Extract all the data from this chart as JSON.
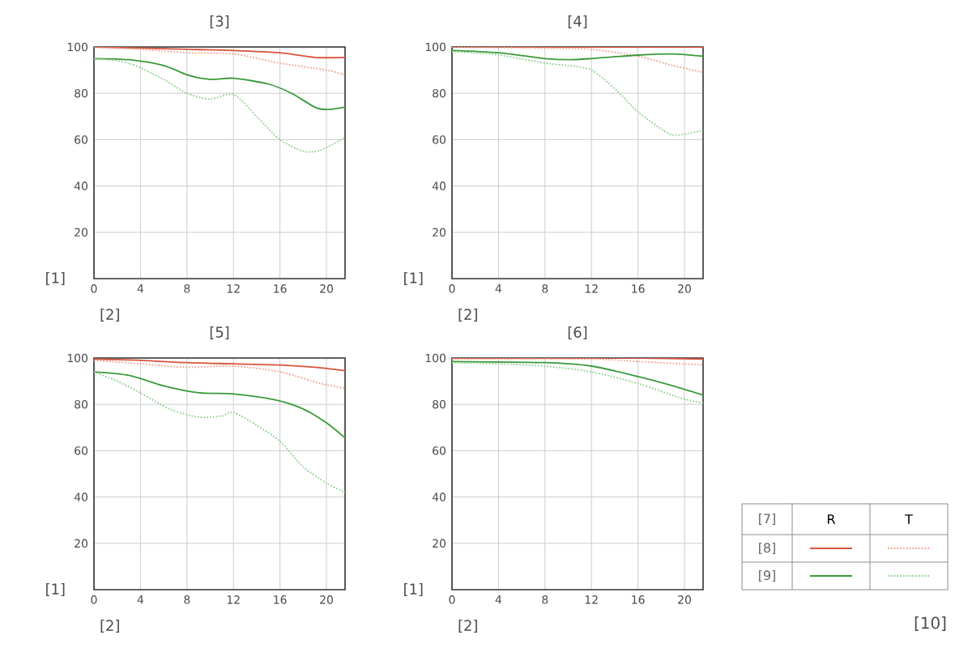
{
  "chart_data": [
    {
      "type": "line",
      "title": "[3]",
      "xlabel": "[2]",
      "ylabel": "[1]",
      "xlim": [
        0,
        21.6
      ],
      "ylim": [
        0,
        100
      ],
      "xticks": [
        0,
        4,
        8,
        12,
        16,
        20
      ],
      "yticks": [
        20,
        40,
        60,
        80,
        100
      ],
      "grid": true,
      "series": [
        {
          "color": "#d9533a",
          "line_style": "solid",
          "x": [
            0,
            4,
            8,
            12,
            16,
            19,
            21.6
          ],
          "values": [
            100,
            99.5,
            99,
            98.5,
            97.5,
            95.5,
            95.5
          ]
        },
        {
          "color": "#f0a090",
          "line_style": "dotted",
          "x": [
            0,
            4,
            8,
            12,
            16,
            20,
            21.6
          ],
          "values": [
            100,
            99,
            97.5,
            97,
            93,
            90,
            88
          ]
        },
        {
          "color": "#3a9a3a",
          "line_style": "solid",
          "x": [
            0,
            3,
            6,
            8,
            10,
            12,
            15,
            17,
            19,
            20,
            21.6
          ],
          "values": [
            95,
            94.5,
            92,
            88,
            86,
            86.5,
            84,
            80,
            74,
            73,
            74
          ]
        },
        {
          "color": "#8fcf8f",
          "line_style": "dotted",
          "x": [
            0,
            3,
            6,
            8,
            10,
            12,
            14,
            16,
            18,
            19.5,
            21.6
          ],
          "values": [
            95,
            93,
            86,
            80,
            77.5,
            79.5,
            70,
            60,
            55,
            55.5,
            61
          ]
        }
      ]
    },
    {
      "type": "line",
      "title": "[4]",
      "xlabel": "[2]",
      "ylabel": "[1]",
      "xlim": [
        0,
        21.6
      ],
      "ylim": [
        0,
        100
      ],
      "xticks": [
        0,
        4,
        8,
        12,
        16,
        20
      ],
      "yticks": [
        20,
        40,
        60,
        80,
        100
      ],
      "grid": true,
      "series": [
        {
          "color": "#d9533a",
          "line_style": "solid",
          "x": [
            0,
            8,
            16,
            21.6
          ],
          "values": [
            100,
            100,
            100,
            100
          ]
        },
        {
          "color": "#f0a090",
          "line_style": "dotted",
          "x": [
            0,
            8,
            12,
            16,
            19,
            21.6
          ],
          "values": [
            100,
            99.5,
            99,
            96,
            92,
            89
          ]
        },
        {
          "color": "#3a9a3a",
          "line_style": "solid",
          "x": [
            0,
            4,
            8,
            10,
            12,
            16,
            19,
            21.6
          ],
          "values": [
            98.5,
            97.5,
            95,
            94.5,
            95,
            96.5,
            97,
            96
          ]
        },
        {
          "color": "#8fcf8f",
          "line_style": "dotted",
          "x": [
            0,
            4,
            8,
            10,
            12,
            14,
            16,
            18.5,
            19.5,
            21.6
          ],
          "values": [
            98,
            96.5,
            93,
            92,
            90,
            82,
            72,
            63,
            62,
            64
          ]
        }
      ]
    },
    {
      "type": "line",
      "title": "[5]",
      "xlabel": "[2]",
      "ylabel": "[1]",
      "xlim": [
        0,
        21.6
      ],
      "ylim": [
        0,
        100
      ],
      "xticks": [
        0,
        4,
        8,
        12,
        16,
        20
      ],
      "yticks": [
        20,
        40,
        60,
        80,
        100
      ],
      "grid": true,
      "series": [
        {
          "color": "#d9533a",
          "line_style": "solid",
          "x": [
            0,
            4,
            8,
            12,
            16,
            19,
            21.6
          ],
          "values": [
            99.5,
            99,
            98,
            97.5,
            97,
            96,
            94.5
          ]
        },
        {
          "color": "#f0a090",
          "line_style": "dotted",
          "x": [
            0,
            4,
            8,
            12,
            16,
            19.5,
            21.6
          ],
          "values": [
            99,
            97.5,
            96,
            96.5,
            94,
            89,
            87
          ]
        },
        {
          "color": "#3a9a3a",
          "line_style": "solid",
          "x": [
            0,
            3,
            6,
            9,
            12,
            15.5,
            18,
            20,
            21.6
          ],
          "values": [
            94,
            92.5,
            88,
            85,
            84.5,
            82,
            78,
            72,
            65.5
          ]
        },
        {
          "color": "#8fcf8f",
          "line_style": "dotted",
          "x": [
            0,
            2,
            4,
            6.5,
            9,
            11,
            12,
            14,
            16,
            18,
            20,
            21.6
          ],
          "values": [
            94,
            90,
            85,
            78,
            74.5,
            75,
            76.5,
            71,
            64,
            53,
            46,
            42
          ]
        }
      ]
    },
    {
      "type": "line",
      "title": "[6]",
      "xlabel": "[2]",
      "ylabel": "[1]",
      "xlim": [
        0,
        21.6
      ],
      "ylim": [
        0,
        100
      ],
      "xticks": [
        0,
        4,
        8,
        12,
        16,
        20
      ],
      "yticks": [
        20,
        40,
        60,
        80,
        100
      ],
      "grid": true,
      "series": [
        {
          "color": "#d9533a",
          "line_style": "solid",
          "x": [
            0,
            12,
            16,
            21.6
          ],
          "values": [
            100,
            100,
            100,
            99.5
          ]
        },
        {
          "color": "#f0a090",
          "line_style": "dotted",
          "x": [
            0,
            12,
            16,
            21.6
          ],
          "values": [
            99.5,
            99.5,
            98.5,
            97
          ]
        },
        {
          "color": "#3a9a3a",
          "line_style": "solid",
          "x": [
            0,
            8,
            12,
            16,
            19,
            21.6
          ],
          "values": [
            98.5,
            98,
            96.5,
            92,
            88,
            84
          ]
        },
        {
          "color": "#8fcf8f",
          "line_style": "dotted",
          "x": [
            0,
            4,
            8,
            12,
            16,
            19.5,
            21.6
          ],
          "values": [
            98,
            97.5,
            96.5,
            94,
            89,
            83,
            80.5
          ]
        }
      ]
    },
    {
      "type": "other",
      "title": "[7]",
      "categories": [
        "R",
        "T"
      ],
      "y_categories": [
        "[8]",
        "[9]"
      ],
      "annotations": [
        "[10]"
      ]
    }
  ]
}
